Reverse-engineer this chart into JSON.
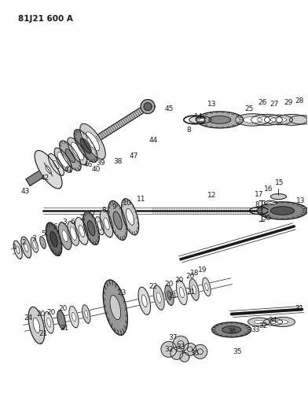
{
  "title": "81J21 600 A",
  "bg": "#ffffff",
  "lc": "#1a1a1a",
  "figsize": [
    3.92,
    5.33
  ],
  "dpi": 100
}
